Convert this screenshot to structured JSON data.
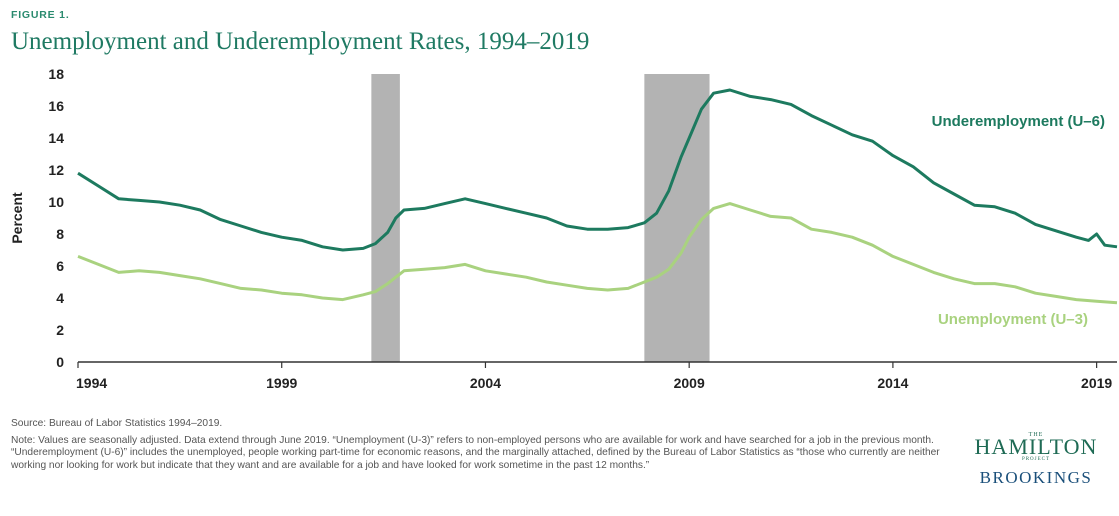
{
  "figure_label": "FIGURE 1.",
  "title": "Unemployment and Underemployment Rates, 1994–2019",
  "source": "Source: Bureau of Labor Statistics 1994–2019.",
  "note": "Note: Values are seasonally adjusted. Data extend through June 2019. “Unemployment (U-3)” refers to non-employed persons who are available for work and have searched for a job in the previous month. “Underemployment (U-6)” includes the unemployed, people working part-time for economic reasons, and the marginally attached, defined by the Bureau of Labor Statistics as “those who currently are neither working nor looking for work but indicate that they want and are available for a job and have looked for work sometime in the past 12 months.”",
  "logo": {
    "the": "THE",
    "hamilton": "HAMILTON",
    "project": "PROJECT",
    "brookings": "BROOKINGS"
  },
  "colors": {
    "u6": "#1d7a5f",
    "u3": "#a9d27f",
    "recession": "#b3b3b3",
    "axis": "#333333"
  },
  "chart_data": {
    "type": "line",
    "ylabel": "Percent",
    "xlabel": "",
    "ylim": [
      0,
      18
    ],
    "xlim": [
      1994,
      2019.5
    ],
    "y_ticks": [
      0,
      2,
      4,
      6,
      8,
      10,
      12,
      14,
      16,
      18
    ],
    "x_ticks": [
      {
        "value": 1994,
        "label": "1994"
      },
      {
        "value": 1999,
        "label": "1999"
      },
      {
        "value": 2004,
        "label": "2004"
      },
      {
        "value": 2009,
        "label": "2009"
      },
      {
        "value": 2014,
        "label": "2014"
      },
      {
        "value": 2019,
        "label": "2019"
      }
    ],
    "grid": false,
    "recessions": [
      [
        2001.2,
        2001.9
      ],
      [
        2007.9,
        2009.5
      ]
    ],
    "series": [
      {
        "name": "Underemployment (U–6)",
        "label_position": "above line, right",
        "points": [
          [
            1994.0,
            11.8
          ],
          [
            1994.5,
            11.0
          ],
          [
            1995.0,
            10.2
          ],
          [
            1995.5,
            10.1
          ],
          [
            1996.0,
            10.0
          ],
          [
            1996.5,
            9.8
          ],
          [
            1997.0,
            9.5
          ],
          [
            1997.5,
            8.9
          ],
          [
            1998.0,
            8.5
          ],
          [
            1998.5,
            8.1
          ],
          [
            1999.0,
            7.8
          ],
          [
            1999.5,
            7.6
          ],
          [
            2000.0,
            7.2
          ],
          [
            2000.5,
            7.0
          ],
          [
            2001.0,
            7.1
          ],
          [
            2001.3,
            7.4
          ],
          [
            2001.6,
            8.1
          ],
          [
            2001.8,
            9.0
          ],
          [
            2002.0,
            9.5
          ],
          [
            2002.5,
            9.6
          ],
          [
            2003.0,
            9.9
          ],
          [
            2003.5,
            10.2
          ],
          [
            2004.0,
            9.9
          ],
          [
            2004.5,
            9.6
          ],
          [
            2005.0,
            9.3
          ],
          [
            2005.5,
            9.0
          ],
          [
            2006.0,
            8.5
          ],
          [
            2006.5,
            8.3
          ],
          [
            2007.0,
            8.3
          ],
          [
            2007.5,
            8.4
          ],
          [
            2007.9,
            8.7
          ],
          [
            2008.2,
            9.3
          ],
          [
            2008.5,
            10.7
          ],
          [
            2008.8,
            12.8
          ],
          [
            2009.0,
            14.0
          ],
          [
            2009.3,
            15.8
          ],
          [
            2009.6,
            16.8
          ],
          [
            2010.0,
            17.0
          ],
          [
            2010.5,
            16.6
          ],
          [
            2011.0,
            16.4
          ],
          [
            2011.5,
            16.1
          ],
          [
            2012.0,
            15.4
          ],
          [
            2012.5,
            14.8
          ],
          [
            2013.0,
            14.2
          ],
          [
            2013.5,
            13.8
          ],
          [
            2014.0,
            12.9
          ],
          [
            2014.5,
            12.2
          ],
          [
            2015.0,
            11.2
          ],
          [
            2015.5,
            10.5
          ],
          [
            2016.0,
            9.8
          ],
          [
            2016.5,
            9.7
          ],
          [
            2017.0,
            9.3
          ],
          [
            2017.5,
            8.6
          ],
          [
            2018.0,
            8.2
          ],
          [
            2018.5,
            7.8
          ],
          [
            2018.8,
            7.6
          ],
          [
            2019.0,
            8.0
          ],
          [
            2019.2,
            7.3
          ],
          [
            2019.5,
            7.2
          ]
        ]
      },
      {
        "name": "Unemployment (U–3)",
        "label_position": "below line, right",
        "points": [
          [
            1994.0,
            6.6
          ],
          [
            1994.5,
            6.1
          ],
          [
            1995.0,
            5.6
          ],
          [
            1995.5,
            5.7
          ],
          [
            1996.0,
            5.6
          ],
          [
            1996.5,
            5.4
          ],
          [
            1997.0,
            5.2
          ],
          [
            1997.5,
            4.9
          ],
          [
            1998.0,
            4.6
          ],
          [
            1998.5,
            4.5
          ],
          [
            1999.0,
            4.3
          ],
          [
            1999.5,
            4.2
          ],
          [
            2000.0,
            4.0
          ],
          [
            2000.5,
            3.9
          ],
          [
            2001.0,
            4.2
          ],
          [
            2001.3,
            4.4
          ],
          [
            2001.6,
            4.9
          ],
          [
            2001.8,
            5.3
          ],
          [
            2002.0,
            5.7
          ],
          [
            2002.5,
            5.8
          ],
          [
            2003.0,
            5.9
          ],
          [
            2003.5,
            6.1
          ],
          [
            2004.0,
            5.7
          ],
          [
            2004.5,
            5.5
          ],
          [
            2005.0,
            5.3
          ],
          [
            2005.5,
            5.0
          ],
          [
            2006.0,
            4.8
          ],
          [
            2006.5,
            4.6
          ],
          [
            2007.0,
            4.5
          ],
          [
            2007.5,
            4.6
          ],
          [
            2007.9,
            5.0
          ],
          [
            2008.2,
            5.3
          ],
          [
            2008.5,
            5.8
          ],
          [
            2008.8,
            6.8
          ],
          [
            2009.0,
            7.8
          ],
          [
            2009.3,
            8.9
          ],
          [
            2009.6,
            9.6
          ],
          [
            2010.0,
            9.9
          ],
          [
            2010.5,
            9.5
          ],
          [
            2011.0,
            9.1
          ],
          [
            2011.5,
            9.0
          ],
          [
            2012.0,
            8.3
          ],
          [
            2012.5,
            8.1
          ],
          [
            2013.0,
            7.8
          ],
          [
            2013.5,
            7.3
          ],
          [
            2014.0,
            6.6
          ],
          [
            2014.5,
            6.1
          ],
          [
            2015.0,
            5.6
          ],
          [
            2015.5,
            5.2
          ],
          [
            2016.0,
            4.9
          ],
          [
            2016.5,
            4.9
          ],
          [
            2017.0,
            4.7
          ],
          [
            2017.5,
            4.3
          ],
          [
            2018.0,
            4.1
          ],
          [
            2018.5,
            3.9
          ],
          [
            2019.0,
            3.8
          ],
          [
            2019.5,
            3.7
          ]
        ]
      }
    ]
  }
}
